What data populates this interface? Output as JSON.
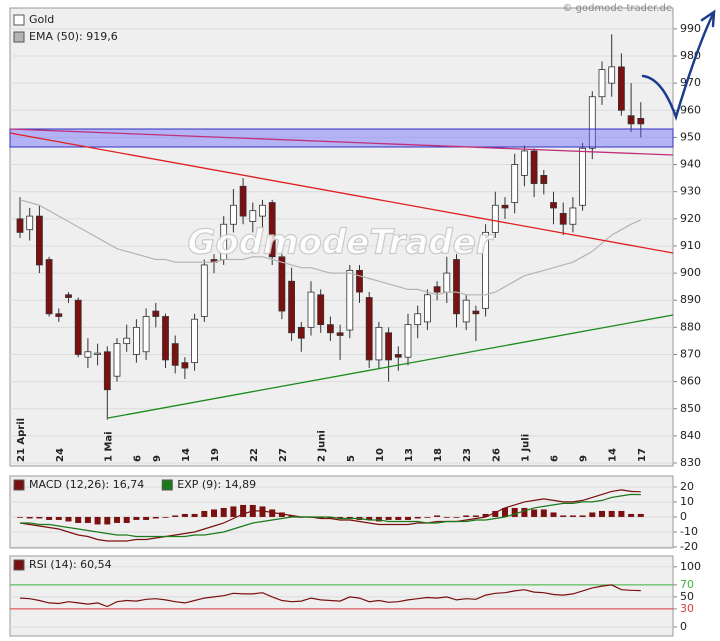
{
  "watermark": "GodmodeTrader",
  "copyright": "© godmode-trader.de",
  "chart_data": [
    {
      "type": "candlestick",
      "categories": [
        "21 April",
        null,
        null,
        null,
        "24",
        null,
        null,
        null,
        null,
        "1 Mai",
        null,
        null,
        "6",
        null,
        "9",
        null,
        null,
        "14",
        null,
        null,
        "19",
        null,
        null,
        null,
        "22",
        null,
        null,
        "27",
        null,
        null,
        null,
        "2 Juni",
        null,
        null,
        "5",
        null,
        null,
        "10",
        null,
        null,
        "13",
        null,
        null,
        "18",
        null,
        null,
        "23",
        null,
        null,
        "26",
        null,
        null,
        "1 Juli",
        null,
        null,
        "6",
        null,
        null,
        "9",
        null,
        null,
        "14",
        null,
        null,
        "17"
      ],
      "series": [
        {
          "name": "Gold",
          "up_color": "#ffffff",
          "down_color": "#7a1010",
          "open": [
            920,
            916,
            921,
            905,
            885,
            892,
            890,
            869,
            870,
            871,
            862,
            874,
            870,
            871,
            886,
            884,
            874,
            867,
            867,
            884,
            905,
            905,
            918,
            932,
            919,
            921,
            926,
            906,
            897,
            880,
            880,
            892,
            881,
            878,
            879,
            901,
            891,
            868,
            878,
            870,
            869,
            881,
            882,
            895,
            893,
            905,
            882,
            886,
            887,
            915,
            925,
            926,
            936,
            945,
            936,
            926,
            922,
            918,
            925,
            946,
            965,
            970,
            976,
            958,
            957
          ],
          "high": [
            928,
            924,
            925,
            906,
            887,
            893,
            891,
            876,
            874,
            873,
            876,
            881,
            883,
            887,
            889,
            885,
            877,
            869,
            885,
            905,
            907,
            921,
            931,
            935,
            926,
            927,
            927,
            908,
            902,
            882,
            897,
            894,
            884,
            881,
            903,
            903,
            893,
            882,
            880,
            873,
            885,
            888,
            894,
            897,
            906,
            907,
            892,
            888,
            918,
            930,
            928,
            944,
            947,
            946,
            938,
            930,
            926,
            928,
            948,
            967,
            978,
            988,
            981,
            970,
            963
          ],
          "low": [
            913,
            912,
            900,
            884,
            882,
            889,
            869,
            865,
            866,
            846,
            860,
            871,
            867,
            868,
            880,
            865,
            863,
            861,
            864,
            882,
            900,
            903,
            915,
            918,
            915,
            917,
            903,
            883,
            875,
            871,
            877,
            878,
            875,
            868,
            876,
            889,
            865,
            865,
            860,
            864,
            866,
            876,
            879,
            890,
            889,
            880,
            879,
            875,
            884,
            913,
            920,
            922,
            932,
            928,
            929,
            918,
            914,
            915,
            923,
            942,
            962,
            965,
            958,
            952,
            950
          ],
          "close": [
            915,
            921,
            903,
            885,
            884,
            891,
            870,
            871,
            870.5,
            857,
            874,
            876,
            880,
            884,
            884,
            868,
            866,
            865,
            883,
            903,
            904,
            918,
            925,
            921,
            923,
            925,
            906,
            886,
            878,
            876,
            893,
            881,
            878,
            877,
            901,
            893,
            868,
            880,
            868,
            869,
            881,
            885,
            892,
            893,
            900,
            885,
            890,
            885,
            915,
            925,
            924,
            940,
            945,
            933,
            933,
            924,
            918,
            924,
            946,
            965,
            975,
            976,
            960,
            955,
            955
          ]
        },
        {
          "name": "EMA (50): 919,6",
          "color": "#b4b4b4",
          "values": [
            927,
            926,
            925,
            923,
            921,
            919,
            917,
            915,
            913,
            911,
            909,
            908,
            907,
            906,
            905,
            905,
            904,
            904,
            904,
            904,
            904,
            905,
            905,
            905,
            906,
            906,
            905,
            904,
            903,
            902,
            902,
            901,
            900,
            900,
            900,
            899,
            898,
            897,
            896,
            895,
            894,
            894,
            893,
            892,
            893,
            893,
            892,
            892,
            892,
            893,
            895,
            897,
            899,
            900,
            901,
            902,
            903,
            904,
            906,
            908,
            911,
            914,
            916,
            918,
            919.6
          ]
        }
      ],
      "ylim": [
        828.9,
        997.7
      ],
      "yticks": [
        830,
        840,
        850,
        860,
        870,
        880,
        890,
        900,
        910,
        920,
        930,
        940,
        950,
        960,
        970,
        980,
        990
      ],
      "grid": true
    },
    {
      "type": "macd",
      "series": [
        {
          "style": "bar",
          "color": "#7a1010",
          "values": [
            0,
            -1,
            -1,
            -2,
            -2,
            -3,
            -4,
            -4,
            -5,
            -5,
            -4,
            -4,
            -2,
            -2,
            -1,
            0,
            1,
            2,
            2,
            4,
            5,
            6,
            7,
            8,
            8,
            7,
            5,
            3,
            1,
            0,
            0,
            -1,
            -1,
            -1,
            -1,
            -2,
            -2,
            -3,
            -2,
            -2,
            -2,
            -1,
            0,
            1,
            0,
            0,
            1,
            1,
            2,
            4,
            6,
            6,
            6,
            5,
            5,
            3,
            1,
            1,
            1,
            3,
            4,
            4,
            4,
            2,
            2
          ]
        },
        {
          "name": "MACD (12,26): 16,74",
          "color": "#7a1010",
          "values": [
            -4,
            -5,
            -6,
            -7,
            -8,
            -10,
            -12,
            -13,
            -15,
            -16,
            -16,
            -16,
            -15,
            -15,
            -14,
            -13,
            -12,
            -11,
            -10,
            -8,
            -6,
            -4,
            -1,
            2,
            4,
            4,
            3,
            2,
            1,
            0,
            0,
            -1,
            -1,
            -2,
            -2,
            -3,
            -4,
            -5,
            -5,
            -5,
            -5,
            -4,
            -4,
            -3,
            -3,
            -3,
            -2,
            -1,
            0,
            3,
            6,
            8,
            10,
            11,
            12,
            11,
            10,
            10,
            11,
            13,
            15,
            17,
            18,
            17,
            16.74
          ]
        },
        {
          "name": "EXP (9): 14,89",
          "color": "#1a7a1a",
          "values": [
            -4,
            -4,
            -5,
            -5,
            -6,
            -7,
            -8,
            -9,
            -10,
            -11,
            -12,
            -12,
            -13,
            -13,
            -13,
            -13,
            -13,
            -13,
            -12,
            -12,
            -11,
            -10,
            -8,
            -6,
            -4,
            -3,
            -2,
            -1,
            0,
            0,
            0,
            0,
            0,
            -1,
            -1,
            -1,
            -2,
            -2,
            -3,
            -3,
            -3,
            -3,
            -4,
            -4,
            -3,
            -3,
            -3,
            -2,
            -2,
            -1,
            0,
            2,
            4,
            6,
            7,
            8,
            9,
            9,
            10,
            10,
            11,
            13,
            14,
            15,
            14.89
          ]
        }
      ],
      "ylim": [
        -20.7,
        27.3
      ],
      "yticks": [
        -20,
        -10,
        0,
        10,
        20
      ]
    },
    {
      "type": "line",
      "series": [
        {
          "name": "RSI (14): 60,54",
          "color": "#7a1010",
          "values": [
            48,
            47,
            44,
            40,
            39,
            42,
            40,
            38,
            40,
            34,
            42,
            44,
            43,
            46,
            47,
            45,
            42,
            40,
            44,
            48,
            50,
            52,
            56,
            55,
            55,
            57,
            50,
            44,
            42,
            43,
            48,
            45,
            44,
            43,
            50,
            48,
            42,
            44,
            41,
            42,
            45,
            47,
            49,
            48,
            50,
            45,
            47,
            46,
            53,
            56,
            57,
            60,
            62,
            58,
            57,
            54,
            53,
            55,
            60,
            65,
            68,
            70,
            62,
            61,
            60.54
          ]
        }
      ],
      "reference_lines": [
        {
          "value": 70,
          "color": "#3cb43c"
        },
        {
          "value": 30,
          "color": "#dc3c3c"
        }
      ],
      "ylim": [
        -15,
        118
      ],
      "yticks": [
        0,
        30,
        50,
        70,
        100
      ]
    }
  ]
}
